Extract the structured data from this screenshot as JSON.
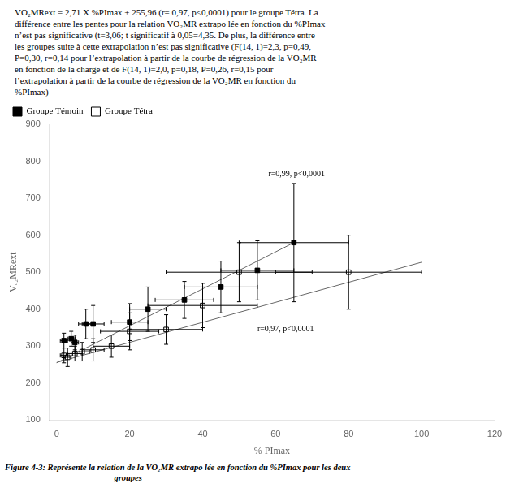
{
  "chart_data": {
    "type": "scatter",
    "xlabel": "% PImax",
    "ylabel": "Vₒ₂MRext",
    "xlim": [
      -2,
      120
    ],
    "ylim": [
      100,
      900
    ],
    "xticks": [
      0,
      20,
      40,
      60,
      80,
      100,
      120
    ],
    "yticks": [
      100,
      200,
      300,
      400,
      500,
      600,
      700,
      800,
      900
    ],
    "grid": false,
    "legend": "upper left",
    "series": [
      {
        "name": "Groupe Témoin",
        "color": "#000000",
        "marker": "filled_square",
        "x": [
          2,
          4,
          5,
          8,
          10,
          20,
          25,
          35,
          45,
          55,
          65
        ],
        "values": [
          315,
          320,
          310,
          360,
          360,
          365,
          400,
          425,
          460,
          505,
          580
        ],
        "xerr": [
          1,
          1,
          1,
          2,
          3,
          5,
          5,
          8,
          10,
          10,
          15
        ],
        "yerr": [
          20,
          20,
          20,
          40,
          50,
          50,
          60,
          50,
          70,
          80,
          160
        ]
      },
      {
        "name": "Groupe Tétra",
        "color": "#000000",
        "marker": "open_square",
        "x": [
          2,
          3,
          5,
          7,
          10,
          15,
          20,
          30,
          40,
          50,
          80
        ],
        "values": [
          275,
          270,
          280,
          285,
          290,
          300,
          340,
          345,
          410,
          500,
          500
        ],
        "xerr": [
          1,
          1,
          2,
          2,
          3,
          5,
          8,
          10,
          15,
          20,
          20
        ],
        "yerr": [
          20,
          25,
          20,
          25,
          30,
          30,
          50,
          40,
          60,
          80,
          100
        ]
      }
    ],
    "lines": [
      {
        "x": [
          0,
          65
        ],
        "y": [
          255,
          580
        ],
        "color": "#666666"
      },
      {
        "x": [
          0,
          100
        ],
        "y": [
          256,
          527
        ],
        "color": "#666666"
      }
    ],
    "annotations": [
      {
        "text": "r=0,99, p<0,0001",
        "x": 58,
        "y": 760
      },
      {
        "text": "r=0,97, p<0,0001",
        "x": 55,
        "y": 340
      }
    ],
    "paragraph_lines": [
      "VO₂MRext = 2,71 X %PImax + 255,96 (r= 0,97, p<0,0001) pour le groupe Tétra. La",
      "différence entre les pentes pour la relation VO₂MR extrapo lée en fonction du %PImax",
      "n’est pas significative (t=3,06; t significatif à 0,05=4,35. De plus, la différence entre",
      "les groupes suite à cette extrapolation n’est pas significative (F(14, 1)=2,3, p=0,49,",
      "P=0,30, r=0,14 pour l’extrapolation à partir de la courbe de régression de la VO₂MR",
      "en fonction de la charge et de F(14, 1)=2,0, p=0,18, P=0,26, r=0,15 pour",
      "l’extrapolation à partir de la courbe de régression de la VO₂MR en fonction du",
      "%PImax)"
    ],
    "caption": "Figure 4-3: Représente la relation de la VO₂MR extrapo lée en fonction du %PImax pour les deux",
    "caption2": "groupes"
  }
}
